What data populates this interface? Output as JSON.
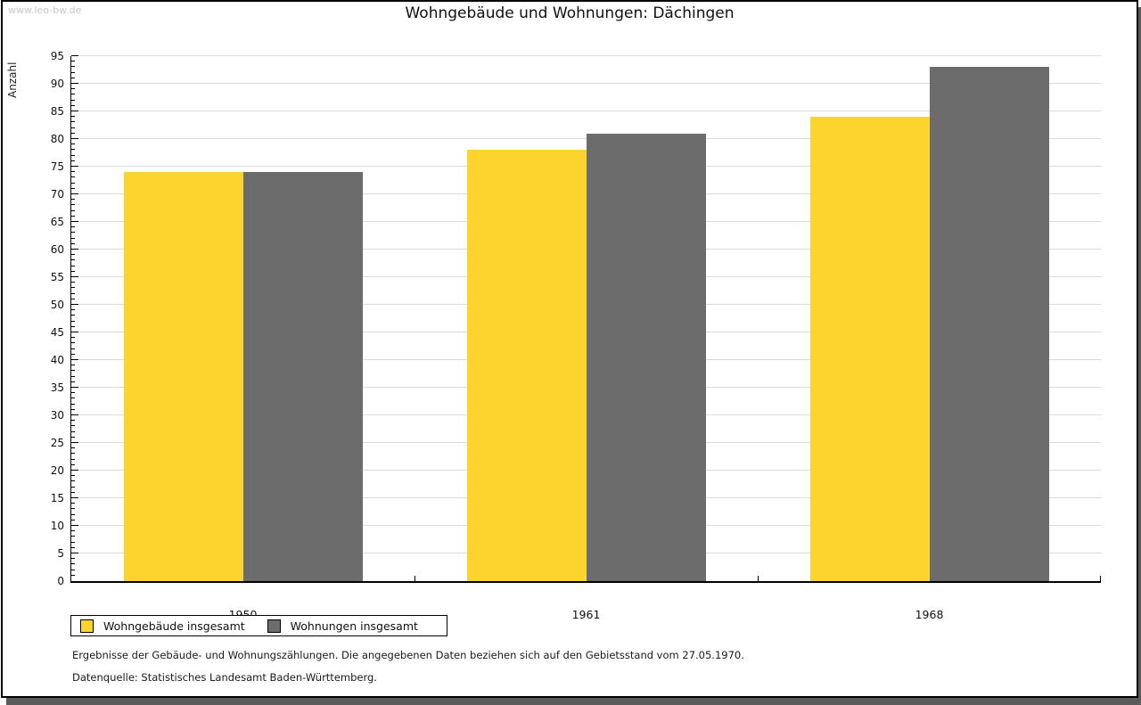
{
  "watermark": "www.leo-bw.de",
  "header": {
    "title": "Wohngebäude und Wohnungen: Dächingen"
  },
  "chart_data": {
    "type": "bar",
    "title": "Wohngebäude und Wohnungen: Dächingen",
    "xlabel": "",
    "ylabel": "Anzahl",
    "categories": [
      "1950",
      "1961",
      "1968"
    ],
    "series": [
      {
        "name": "Wohngebäude insgesamt",
        "color": "#FDD32E",
        "values": [
          74,
          78,
          84
        ]
      },
      {
        "name": "Wohnungen insgesamt",
        "color": "#6C6C6C",
        "values": [
          74,
          81,
          93
        ]
      }
    ],
    "ylim": [
      0,
      95
    ],
    "ytick_step": 5,
    "yminor_step": 1,
    "yticks": [
      0,
      5,
      10,
      15,
      20,
      25,
      30,
      35,
      40,
      45,
      50,
      55,
      60,
      65,
      70,
      75,
      80,
      85,
      90,
      95
    ],
    "grid": true,
    "legend_position": "bottom-left"
  },
  "legend": {
    "items": [
      {
        "label": "Wohngebäude insgesamt",
        "color": "#FDD32E"
      },
      {
        "label": "Wohnungen insgesamt",
        "color": "#6C6C6C"
      }
    ]
  },
  "footnotes": {
    "line1": "Ergebnisse der Gebäude- und Wohnungszählungen. Die angegebenen Daten beziehen sich auf den Gebietsstand vom 27.05.1970.",
    "line2": "Datenquelle: Statistisches Landesamt Baden-Württemberg."
  },
  "colors": {
    "bar_yellow": "#FDD32E",
    "bar_gray": "#6C6C6C",
    "gridline": "#DCDCDC",
    "watermark": "#C9C9C9",
    "shadow": "#5B5B5B",
    "axis": "#000000"
  }
}
